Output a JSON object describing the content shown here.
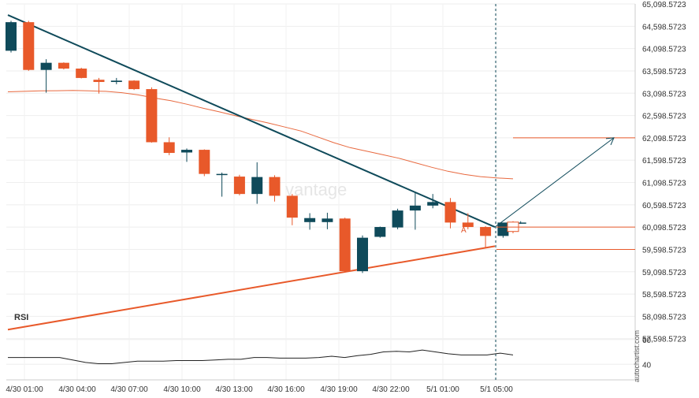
{
  "chart_data": {
    "type": "candlestick",
    "title": "",
    "price_axis": {
      "min": 57098.5723,
      "max": 65098.5723,
      "ticks": [
        "65,098.5723",
        "64,598.5723",
        "64,098.5723",
        "63,598.5723",
        "63,098.5723",
        "62,598.5723",
        "62,098.5723",
        "61,598.5723",
        "61,098.5723",
        "60,598.5723",
        "60,098.5723",
        "59,598.5723",
        "59,098.5723",
        "58,598.5723",
        "58,098.5723",
        "57,598.5723"
      ]
    },
    "time_labels": [
      "4/30 01:00",
      "4/30 04:00",
      "4/30 07:00",
      "4/30 10:00",
      "4/30 13:00",
      "4/30 16:00",
      "4/30 19:00",
      "4/30 22:00",
      "5/1 01:00",
      "5/1 05:00"
    ],
    "candles": [
      {
        "o": 64050,
        "h": 64720,
        "l": 64010,
        "c": 64690
      },
      {
        "o": 64690,
        "h": 64720,
        "l": 63600,
        "c": 63620
      },
      {
        "o": 63620,
        "h": 63860,
        "l": 63110,
        "c": 63780
      },
      {
        "o": 63780,
        "h": 63790,
        "l": 63630,
        "c": 63650
      },
      {
        "o": 63650,
        "h": 63670,
        "l": 63430,
        "c": 63440
      },
      {
        "o": 63400,
        "h": 63440,
        "l": 63090,
        "c": 63350
      },
      {
        "o": 63350,
        "h": 63440,
        "l": 63300,
        "c": 63380
      },
      {
        "o": 63380,
        "h": 63390,
        "l": 63170,
        "c": 63190
      },
      {
        "o": 63190,
        "h": 63230,
        "l": 61990,
        "c": 62000
      },
      {
        "o": 62000,
        "h": 62110,
        "l": 61710,
        "c": 61760
      },
      {
        "o": 61770,
        "h": 61860,
        "l": 61560,
        "c": 61830
      },
      {
        "o": 61830,
        "h": 61840,
        "l": 61240,
        "c": 61290
      },
      {
        "o": 61290,
        "h": 61320,
        "l": 60780,
        "c": 61290
      },
      {
        "o": 61230,
        "h": 61270,
        "l": 60810,
        "c": 60840
      },
      {
        "o": 60840,
        "h": 61550,
        "l": 60620,
        "c": 61220
      },
      {
        "o": 61220,
        "h": 61260,
        "l": 60670,
        "c": 60800
      },
      {
        "o": 60800,
        "h": 60840,
        "l": 60140,
        "c": 60310
      },
      {
        "o": 60210,
        "h": 60410,
        "l": 60040,
        "c": 60300
      },
      {
        "o": 60210,
        "h": 60420,
        "l": 60050,
        "c": 60290
      },
      {
        "o": 60290,
        "h": 60310,
        "l": 59090,
        "c": 59110
      },
      {
        "o": 59110,
        "h": 59910,
        "l": 59070,
        "c": 59860
      },
      {
        "o": 59880,
        "h": 60110,
        "l": 59860,
        "c": 60100
      },
      {
        "o": 60090,
        "h": 60510,
        "l": 60050,
        "c": 60470
      },
      {
        "o": 60470,
        "h": 60880,
        "l": 60040,
        "c": 60580
      },
      {
        "o": 60580,
        "h": 60840,
        "l": 60520,
        "c": 60660
      },
      {
        "o": 60660,
        "h": 60750,
        "l": 60070,
        "c": 60200
      },
      {
        "o": 60200,
        "h": 60410,
        "l": 60050,
        "c": 60100
      },
      {
        "o": 60100,
        "h": 60120,
        "l": 59640,
        "c": 59900
      },
      {
        "o": 59900,
        "h": 60180,
        "l": 59860,
        "c": 60200
      },
      {
        "o": 60180,
        "h": 60230,
        "l": 60170,
        "c": 60200
      }
    ],
    "projected_candle": {
      "o": 60000,
      "h": 60230,
      "l": 59960,
      "c": 60210
    },
    "moving_average": [
      63130,
      63140,
      63150,
      63155,
      63160,
      63150,
      63140,
      63110,
      63060,
      62990,
      62930,
      62850,
      62760,
      62680,
      62590,
      62510,
      62430,
      62340,
      62250,
      62120,
      61990,
      61880,
      61800,
      61720,
      61640,
      61540,
      61440,
      61350,
      61280,
      61230,
      61200,
      61180
    ],
    "resistance_line": {
      "start": 64850,
      "end": 60100
    },
    "support_line": {
      "start": 57800,
      "end": 59670
    },
    "target_level": 62098.5723,
    "entry_level": 60098.5723,
    "stop_level": 59598.5723,
    "rsi": {
      "label": "RSI",
      "ticks": [
        60,
        40
      ],
      "range": [
        30,
        70
      ],
      "values": [
        45.5,
        45.5,
        45.5,
        45.5,
        45.5,
        43.5,
        41.5,
        40.5,
        40.5,
        41.5,
        42.5,
        42.5,
        42.5,
        43,
        43,
        43,
        43.5,
        44,
        44,
        45.5,
        45.5,
        45,
        45,
        45,
        45.5,
        46.5,
        45.5,
        47,
        48,
        50,
        50.5,
        50,
        51.5,
        50,
        48.5,
        47.5,
        47.5,
        47.5,
        49,
        47.5
      ]
    },
    "annotation": "A",
    "watermark": "vantage",
    "credit": "autochartist.com"
  }
}
